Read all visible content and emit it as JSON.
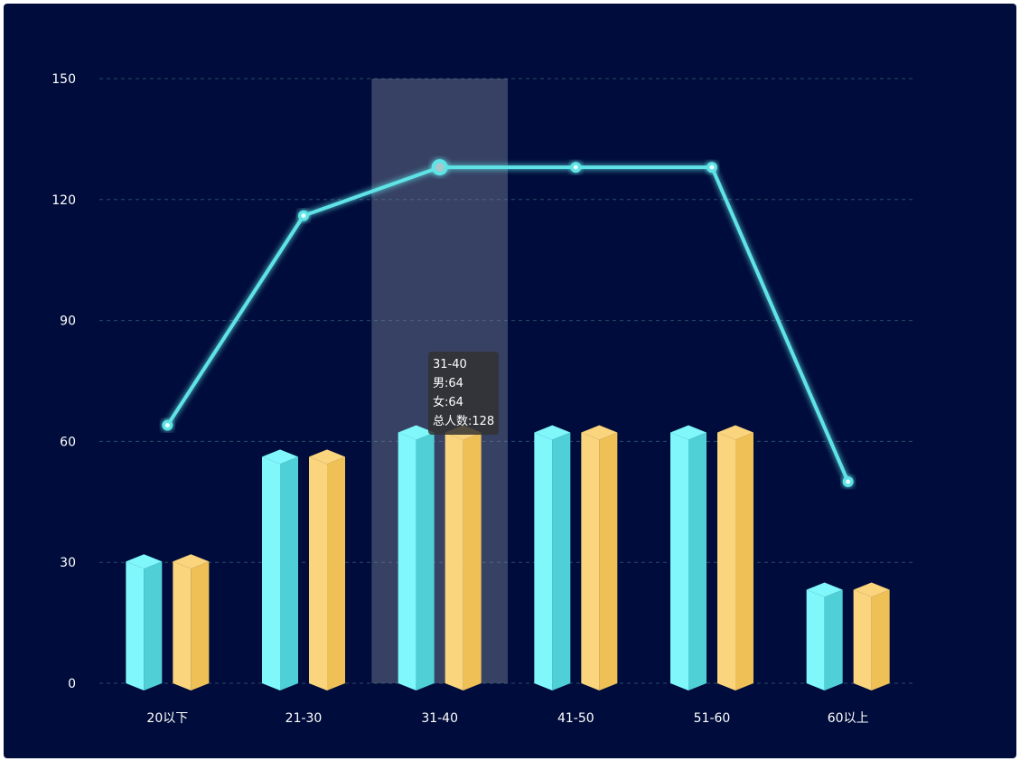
{
  "chart_data": {
    "type": "bar",
    "categories": [
      "20以下",
      "21-30",
      "31-40",
      "41-50",
      "51-60",
      "60以上"
    ],
    "series": [
      {
        "name": "男",
        "type": "bar",
        "values": [
          32,
          58,
          64,
          64,
          64,
          25
        ],
        "color": "#7ff7fb"
      },
      {
        "name": "女",
        "type": "bar",
        "values": [
          32,
          58,
          64,
          64,
          64,
          25
        ],
        "color": "#fbd57d"
      },
      {
        "name": "总人数",
        "type": "line",
        "values": [
          64,
          116,
          128,
          128,
          128,
          50
        ],
        "color": "#5ee3e6"
      }
    ],
    "ylim": [
      0,
      150
    ],
    "yticks": [
      0,
      30,
      60,
      90,
      120,
      150
    ],
    "grid": true,
    "highlight_index": 2,
    "tooltip": {
      "category": "31-40",
      "lines": [
        "男:64",
        "女:64",
        "总人数:128"
      ]
    },
    "colors": {
      "background": "#000c3b",
      "grid": "#2a4a6a",
      "male_front": "#7ff7fb",
      "male_side": "#4fcfd6",
      "female_front": "#fbd57d",
      "female_side": "#efc055",
      "line": "#5ee3e6",
      "highlight": "#7a8296"
    }
  }
}
